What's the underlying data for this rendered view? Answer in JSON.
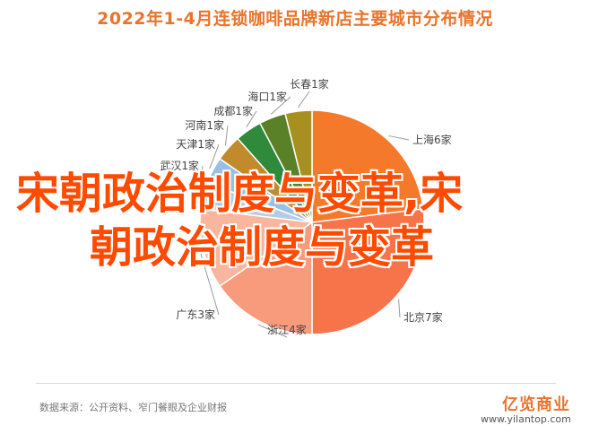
{
  "chart_data": {
    "type": "pie",
    "title": "2022年1-4月连锁咖啡品牌新店主要城市分布情况",
    "slices": [
      {
        "label": "上海6家",
        "value": 6,
        "color": "#f5792b"
      },
      {
        "label": "北京7家",
        "value": 7,
        "color": "#f7744b"
      },
      {
        "label": "浙江4家",
        "value": 4,
        "color": "#f89a7c"
      },
      {
        "label": "广东3家",
        "value": 3,
        "color": "#f9b69e"
      },
      {
        "label": "武汉1家",
        "value": 1,
        "color": "#b5cde4"
      },
      {
        "label": "天津1家",
        "value": 1,
        "color": "#98bfe6"
      },
      {
        "label": "河南1家",
        "value": 1,
        "color": "#c18b2d"
      },
      {
        "label": "成都1家",
        "value": 1,
        "color": "#2f8a3b"
      },
      {
        "label": "海口1家",
        "value": 1,
        "color": "#5a8128"
      },
      {
        "label": "长春1家",
        "value": 1,
        "color": "#a89020"
      }
    ]
  },
  "overlay": {
    "line1": "宋朝政治制度与变革,宋",
    "line2": "朝政治制度与变革"
  },
  "footer": {
    "source": "数据来源：公开资料、窄门餐眼及企业财报",
    "logo": "亿览商业",
    "logo_url": "www.yilantop.com"
  }
}
